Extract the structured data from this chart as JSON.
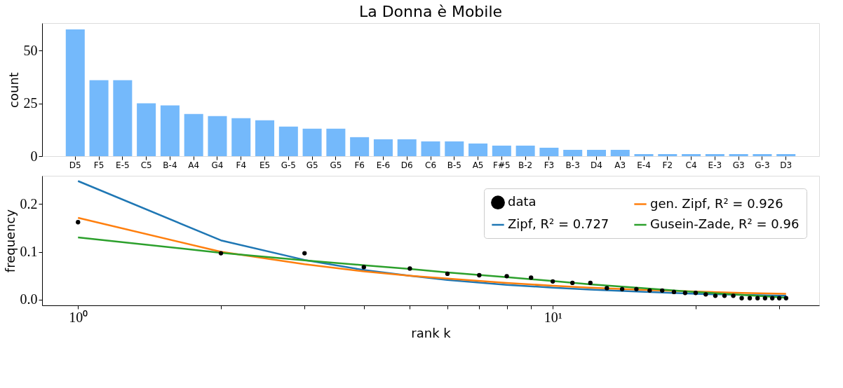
{
  "chart_data": [
    {
      "type": "bar",
      "title": "La Donna è Mobile",
      "ylabel": "count",
      "categories": [
        "D5",
        "F5",
        "E-5",
        "C5",
        "B-4",
        "A4",
        "G4",
        "F4",
        "E5",
        "G-5",
        "G5",
        "G5",
        "F6",
        "E-6",
        "D6",
        "C6",
        "B-5",
        "A5",
        "F#5",
        "B-2",
        "F3",
        "B-3",
        "D4",
        "A3",
        "E-4",
        "F2",
        "C4",
        "E-3",
        "G3",
        "G-3",
        "D3"
      ],
      "values": [
        60,
        36,
        36,
        25,
        24,
        20,
        19,
        18,
        17,
        14,
        13,
        13,
        9,
        8,
        8,
        7,
        7,
        6,
        5,
        5,
        4,
        3,
        3,
        3,
        1,
        1,
        1,
        1,
        1,
        1,
        1
      ],
      "color": "#74b9fb",
      "ylim": [
        0,
        63
      ],
      "yticks": [
        0,
        25,
        50
      ],
      "grid": false
    },
    {
      "type": "line",
      "xlabel": "rank k",
      "ylabel": "frequency",
      "log": "x",
      "legend": "top right",
      "grid": false,
      "xlim": [
        0.84,
        36.4
      ],
      "xticks": [
        {
          "value": 1,
          "label": "10⁰"
        },
        {
          "value": 2,
          "label": null
        },
        {
          "value": 3,
          "label": null
        },
        {
          "value": 4,
          "label": null
        },
        {
          "value": 5,
          "label": null
        },
        {
          "value": 6,
          "label": null
        },
        {
          "value": 7,
          "label": null
        },
        {
          "value": 8,
          "label": null
        },
        {
          "value": 9,
          "label": null
        },
        {
          "value": 10,
          "label": "10¹"
        },
        {
          "value": 20,
          "label": null
        },
        {
          "value": 30,
          "label": null
        }
      ],
      "ylim": [
        -0.012,
        0.259
      ],
      "yticks": [
        {
          "value": 0,
          "label": "0.0"
        },
        0.1,
        0.2
      ],
      "series": [
        {
          "name": "data",
          "type": "scatter",
          "marker": "circle",
          "color": "#000000",
          "x": [
            1,
            2,
            3,
            4,
            5,
            6,
            7,
            8,
            9,
            10,
            11,
            12,
            13,
            14,
            15,
            16,
            17,
            18,
            19,
            20,
            21,
            22,
            23,
            24,
            25,
            26,
            27,
            28,
            29,
            30,
            31
          ],
          "values": [
            0.162,
            0.097,
            0.097,
            0.068,
            0.065,
            0.054,
            0.051,
            0.049,
            0.046,
            0.038,
            0.035,
            0.035,
            0.024,
            0.022,
            0.022,
            0.019,
            0.019,
            0.016,
            0.014,
            0.014,
            0.011,
            0.008,
            0.008,
            0.008,
            0.003,
            0.003,
            0.003,
            0.003,
            0.003,
            0.003,
            0.003
          ]
        },
        {
          "name": "Zipf, R² = 0.727",
          "type": "line",
          "color": "#1f77b4",
          "x": [
            1,
            2,
            3,
            4,
            5,
            6,
            8,
            10,
            12,
            15,
            20,
            25,
            31
          ],
          "values": [
            0.248,
            0.124,
            0.083,
            0.062,
            0.05,
            0.041,
            0.031,
            0.025,
            0.021,
            0.017,
            0.012,
            0.01,
            0.008
          ]
        },
        {
          "name": "gen. Zipf, R² = 0.926",
          "type": "line",
          "color": "#ff7f0e",
          "x": [
            1,
            2,
            3,
            4,
            5,
            6,
            8,
            10,
            12,
            15,
            20,
            25,
            31
          ],
          "values": [
            0.171,
            0.1,
            0.074,
            0.059,
            0.05,
            0.044,
            0.035,
            0.029,
            0.025,
            0.021,
            0.017,
            0.014,
            0.012
          ]
        },
        {
          "name": "Gusein-Zade, R² = 0.96",
          "type": "line",
          "color": "#2ca02c",
          "x": [
            1,
            2,
            3,
            4,
            5,
            6,
            8,
            10,
            12,
            15,
            20,
            25,
            31
          ],
          "values": [
            0.13,
            0.098,
            0.082,
            0.072,
            0.064,
            0.057,
            0.047,
            0.039,
            0.032,
            0.025,
            0.016,
            0.01,
            0.004
          ]
        }
      ]
    }
  ]
}
